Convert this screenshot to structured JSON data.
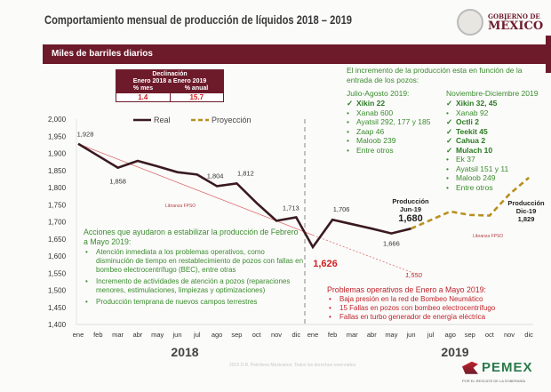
{
  "header": {
    "title": "Comportamiento mensual de producción de líquidos 2018 – 2019",
    "gov_logo_line1": "GOBIERNO DE",
    "gov_logo_line2": "MÉXICO"
  },
  "banner": {
    "label": "Miles de barriles diarios"
  },
  "declinacion": {
    "title": "Declinación",
    "subtitle": "Enero 2018 a Enero 2019",
    "col_mes": "% mes",
    "col_anual": "% anual",
    "mes": "1.4",
    "anual": "15.7"
  },
  "incremento": {
    "intro": "El incremento de la producción esta en función de la entrada de los pozos:",
    "jul_ago": {
      "heading": "Julio-Agosto 2019:",
      "items": [
        {
          "mark": "✓",
          "text": "Xikin 22",
          "bold": true
        },
        {
          "mark": "•",
          "text": "Xanab 600"
        },
        {
          "mark": "•",
          "text": "Ayatsil 292, 177 y 185"
        },
        {
          "mark": "•",
          "text": "Zaap 46"
        },
        {
          "mark": "•",
          "text": "Maloob 239"
        },
        {
          "mark": "•",
          "text": "Entre otros"
        }
      ]
    },
    "nov_dic": {
      "heading": "Noviembre-Diciembre 2019",
      "items": [
        {
          "mark": "✓",
          "text": "Xikin 32, 45",
          "bold": true
        },
        {
          "mark": "•",
          "text": "Xanab 92"
        },
        {
          "mark": "✓",
          "text": "Octli 2",
          "bold": true
        },
        {
          "mark": "✓",
          "text": "Teekit 45",
          "bold": true
        },
        {
          "mark": "✓",
          "text": "Cahua 2",
          "bold": true
        },
        {
          "mark": "✓",
          "text": "Mulach 10",
          "bold": true
        },
        {
          "mark": "•",
          "text": "Ek 37"
        },
        {
          "mark": "•",
          "text": "Ayatsil 151 y 11"
        },
        {
          "mark": "•",
          "text": "Maloob 249"
        },
        {
          "mark": "•",
          "text": "Entre otros"
        }
      ]
    }
  },
  "acciones": {
    "heading": "Acciones que ayudaron a estabilizar la producción de Febrero a Mayo 2019:",
    "items": [
      "Atención inmediata a los problemas operativos, como disminución de tiempo en restablecimiento de pozos con fallas en bombeo electrocentrífugo (BEC), entre otras",
      "Incremento de actividades de atención a pozos (reparaciones menores, estimulaciones, limpiezas y optimizaciones)",
      "Producción temprana de nuevos campos terrestres"
    ]
  },
  "problemas": {
    "heading": "Problemas operativos de Enero a Mayo 2019:",
    "items": [
      "Baja presión en la red de Bombeo Neumático",
      "15 Fallas en pozos con bombeo electrocentrífugo",
      "Fallas en turbo generador de energía eléctrica"
    ]
  },
  "annotations": {
    "libranza_1": "Libranza FPSO",
    "libranza_2": "Libranza FPSO",
    "jun_title": "Producción Jun-19",
    "jun_value": "1,680",
    "dic_title": "Producción Dic-19",
    "dic_value": "1,829",
    "trend_end": "1,550"
  },
  "footer": {
    "copyright": "2019 D.R. Petróleos Mexicanos. Todos los derechos reservados",
    "pemex": "PEMEX",
    "pemex_tagline": "POR EL RESCATE DE LA SOBERANÍA"
  },
  "colors": {
    "real": "#3a1a1f",
    "proyeccion": "#b8901e",
    "trend": "#e07070",
    "brand": "#6d1b2b",
    "green": "#3b8c2e",
    "red": "#c0242b"
  },
  "chart_data": {
    "type": "line",
    "ylabel": "Miles de barriles diarios",
    "ylim": [
      1400,
      2000
    ],
    "yticks": [
      "1,400",
      "1,450",
      "1,500",
      "1,550",
      "1,600",
      "1,650",
      "1,700",
      "1,750",
      "1,800",
      "1,850",
      "1,900",
      "1,950",
      "2,000"
    ],
    "categories": [
      "ene",
      "feb",
      "mar",
      "abr",
      "may",
      "jun",
      "jul",
      "ago",
      "sep",
      "oct",
      "nov",
      "dic",
      "ene",
      "feb",
      "mar",
      "abr",
      "may",
      "jun",
      "jul",
      "ago",
      "sep",
      "oct",
      "nov",
      "dic"
    ],
    "year_labels": [
      "2018",
      "2019"
    ],
    "legend": [
      "Real",
      "Proyección"
    ],
    "series": [
      {
        "name": "Real",
        "values": [
          1928,
          1893,
          1858,
          1878,
          1862,
          1845,
          1838,
          1804,
          1812,
          1755,
          1703,
          1713,
          1626,
          1706,
          1693,
          1680,
          1666,
          1680,
          null,
          null,
          null,
          null,
          null,
          null
        ]
      },
      {
        "name": "Proyección",
        "values": [
          null,
          null,
          null,
          null,
          null,
          null,
          null,
          null,
          null,
          null,
          null,
          null,
          null,
          null,
          null,
          null,
          null,
          1680,
          1705,
          1730,
          1720,
          1718,
          1780,
          1829
        ]
      },
      {
        "name": "Tendencia",
        "values_at": [
          [
            0,
            1928
          ],
          [
            17,
            1550
          ]
        ]
      }
    ],
    "data_labels": [
      {
        "i": 0,
        "text": "1,928"
      },
      {
        "i": 2,
        "text": "1,858"
      },
      {
        "i": 7,
        "text": "1,804"
      },
      {
        "i": 8,
        "text": "1,812"
      },
      {
        "i": 11,
        "text": "1,713"
      },
      {
        "i": 12,
        "text": "1,626"
      },
      {
        "i": 13,
        "text": "1,706"
      },
      {
        "i": 16,
        "text": "1,666"
      }
    ]
  }
}
